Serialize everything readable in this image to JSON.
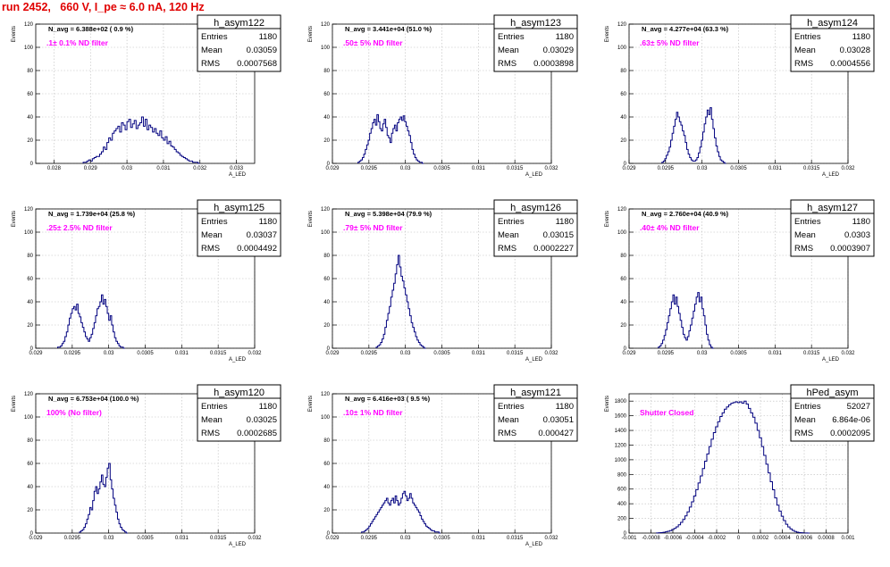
{
  "page": {
    "title": "run 2452,   660 V, I_pe ≈ 6.0 nA, 120 Hz"
  },
  "stat_labels": {
    "entries": "Entries",
    "mean": "Mean",
    "rms": "RMS"
  },
  "colors": {
    "histogram": "#00007f",
    "title": "#e00000",
    "filter_label": "#ff00ff",
    "grid": "#bbbbbb"
  },
  "chart_data": [
    {
      "type": "bar",
      "histogram_name": "h_asym122",
      "annotation_navg": "N_avg = 6.388e+02 ( 0.9 %)",
      "annotation_filter": ".1± 0.1% ND filter",
      "stats": {
        "entries": "1180",
        "mean": "0.03059",
        "rms": "0.0007568"
      },
      "xlabel": "A_LED",
      "ylabel": "Events",
      "xlim": [
        0.0275,
        0.0335
      ],
      "ylim": [
        0,
        120
      ],
      "x_ticks": [
        "0.028",
        "0.029",
        "0.03",
        "0.031",
        "0.032",
        "0.033"
      ],
      "x_tick_values": [
        0.028,
        0.029,
        0.03,
        0.031,
        0.032,
        0.033
      ],
      "y_ticks": [
        "0",
        "20",
        "40",
        "60",
        "80",
        "100",
        "120"
      ],
      "y_tick_values": [
        0,
        20,
        40,
        60,
        80,
        100,
        120
      ],
      "grid": true,
      "bins": {
        "start": 0.0288,
        "width": 5e-05,
        "values": [
          1,
          1,
          2,
          3,
          2,
          4,
          5,
          6,
          6,
          8,
          10,
          14,
          12,
          18,
          22,
          20,
          26,
          28,
          30,
          32,
          27,
          35,
          33,
          29,
          36,
          38,
          31,
          34,
          37,
          30,
          33,
          35,
          40,
          32,
          38,
          29,
          33,
          31,
          27,
          30,
          26,
          24,
          28,
          22,
          20,
          23,
          17,
          19,
          15,
          14,
          12,
          10,
          9,
          7,
          6,
          5,
          4,
          3,
          2,
          2,
          1,
          1,
          1,
          0
        ]
      }
    },
    {
      "type": "bar",
      "histogram_name": "h_asym123",
      "annotation_navg": "N_avg = 3.441e+04 (51.0 %)",
      "annotation_filter": ".50± 5% ND filter",
      "stats": {
        "entries": "1180",
        "mean": "0.03029",
        "rms": "0.0003898"
      },
      "xlabel": "A_LED",
      "ylabel": "Events",
      "xlim": [
        0.029,
        0.032
      ],
      "ylim": [
        0,
        120
      ],
      "x_ticks": [
        "0.029",
        "0.0295",
        "0.03",
        "0.0305",
        "0.031",
        "0.0315",
        "0.032"
      ],
      "x_tick_values": [
        0.029,
        0.0295,
        0.03,
        0.0305,
        0.031,
        0.0315,
        0.032
      ],
      "y_ticks": [
        "0",
        "20",
        "40",
        "60",
        "80",
        "100",
        "120"
      ],
      "y_tick_values": [
        0,
        20,
        40,
        60,
        80,
        100,
        120
      ],
      "grid": true,
      "bins": {
        "start": 0.02935,
        "width": 2e-05,
        "values": [
          1,
          2,
          3,
          5,
          8,
          12,
          16,
          20,
          26,
          30,
          35,
          38,
          33,
          42,
          36,
          30,
          28,
          34,
          38,
          31,
          24,
          22,
          18,
          26,
          30,
          33,
          28,
          35,
          38,
          40,
          37,
          41,
          36,
          32,
          28,
          24,
          18,
          12,
          8,
          5,
          3,
          2,
          1,
          1,
          0
        ]
      }
    },
    {
      "type": "bar",
      "histogram_name": "h_asym124",
      "annotation_navg": "N_avg = 4.277e+04 (63.3 %)",
      "annotation_filter": ".63± 5% ND filter",
      "stats": {
        "entries": "1180",
        "mean": "0.03028",
        "rms": "0.0004556"
      },
      "xlabel": "A_LED",
      "ylabel": "Events",
      "xlim": [
        0.029,
        0.032
      ],
      "ylim": [
        0,
        120
      ],
      "x_ticks": [
        "0.029",
        "0.0295",
        "0.03",
        "0.0305",
        "0.031",
        "0.0315",
        "0.032"
      ],
      "x_tick_values": [
        0.029,
        0.0295,
        0.03,
        0.0305,
        0.031,
        0.0315,
        0.032
      ],
      "y_ticks": [
        "0",
        "20",
        "40",
        "60",
        "80",
        "100",
        "120"
      ],
      "y_tick_values": [
        0,
        20,
        40,
        60,
        80,
        100,
        120
      ],
      "grid": true,
      "bins": {
        "start": 0.02945,
        "width": 2e-05,
        "values": [
          1,
          2,
          4,
          7,
          10,
          14,
          20,
          26,
          32,
          38,
          44,
          40,
          36,
          33,
          28,
          24,
          18,
          12,
          8,
          5,
          3,
          2,
          2,
          3,
          5,
          9,
          14,
          20,
          27,
          34,
          40,
          46,
          42,
          48,
          38,
          30,
          22,
          15,
          10,
          6,
          3,
          2,
          1,
          0
        ]
      }
    },
    {
      "type": "bar",
      "histogram_name": "h_asym125",
      "annotation_navg": "N_avg = 1.739e+04 (25.8 %)",
      "annotation_filter": ".25± 2.5% ND filter",
      "stats": {
        "entries": "1180",
        "mean": "0.03037",
        "rms": "0.0004492"
      },
      "xlabel": "A_LED",
      "ylabel": "Events",
      "xlim": [
        0.029,
        0.032
      ],
      "ylim": [
        0,
        120
      ],
      "x_ticks": [
        "0.029",
        "0.0295",
        "0.03",
        "0.0305",
        "0.031",
        "0.0315",
        "0.032"
      ],
      "x_tick_values": [
        0.029,
        0.0295,
        0.03,
        0.0305,
        0.031,
        0.0315,
        0.032
      ],
      "y_ticks": [
        "0",
        "20",
        "40",
        "60",
        "80",
        "100",
        "120"
      ],
      "y_tick_values": [
        0,
        20,
        40,
        60,
        80,
        100,
        120
      ],
      "grid": true,
      "bins": {
        "start": 0.0293,
        "width": 2e-05,
        "values": [
          1,
          1,
          2,
          4,
          6,
          10,
          14,
          20,
          26,
          30,
          34,
          36,
          33,
          38,
          30,
          27,
          22,
          18,
          14,
          10,
          8,
          6,
          9,
          12,
          17,
          22,
          28,
          34,
          36,
          40,
          46,
          38,
          42,
          36,
          30,
          24,
          28,
          20,
          14,
          9,
          6,
          4,
          2,
          1,
          1,
          0
        ]
      }
    },
    {
      "type": "bar",
      "histogram_name": "h_asym126",
      "annotation_navg": "N_avg = 5.398e+04 (79.9 %)",
      "annotation_filter": ".79± 5% ND filter",
      "stats": {
        "entries": "1180",
        "mean": "0.03015",
        "rms": "0.0002227"
      },
      "xlabel": "A_LED",
      "ylabel": "Events",
      "xlim": [
        0.029,
        0.032
      ],
      "ylim": [
        0,
        120
      ],
      "x_ticks": [
        "0.029",
        "0.0295",
        "0.03",
        "0.0305",
        "0.031",
        "0.0315",
        "0.032"
      ],
      "x_tick_values": [
        0.029,
        0.0295,
        0.03,
        0.0305,
        0.031,
        0.0315,
        0.032
      ],
      "y_ticks": [
        "0",
        "20",
        "40",
        "60",
        "80",
        "100",
        "120"
      ],
      "y_tick_values": [
        0,
        20,
        40,
        60,
        80,
        100,
        120
      ],
      "grid": true,
      "bins": {
        "start": 0.0296,
        "width": 2e-05,
        "values": [
          1,
          2,
          3,
          5,
          8,
          12,
          18,
          24,
          30,
          36,
          44,
          50,
          56,
          64,
          72,
          80,
          70,
          62,
          58,
          52,
          46,
          40,
          34,
          28,
          22,
          18,
          14,
          10,
          7,
          5,
          3,
          2,
          1,
          0
        ]
      }
    },
    {
      "type": "bar",
      "histogram_name": "h_asym127",
      "annotation_navg": "N_avg = 2.760e+04 (40.9 %)",
      "annotation_filter": ".40± 4% ND filter",
      "stats": {
        "entries": "1180",
        "mean": "0.0303",
        "rms": "0.0003907"
      },
      "xlabel": "A_LED",
      "ylabel": "Events",
      "xlim": [
        0.029,
        0.032
      ],
      "ylim": [
        0,
        120
      ],
      "x_ticks": [
        "0.029",
        "0.0295",
        "0.03",
        "0.0305",
        "0.031",
        "0.0315",
        "0.032"
      ],
      "x_tick_values": [
        0.029,
        0.0295,
        0.03,
        0.0305,
        0.031,
        0.0315,
        0.032
      ],
      "y_ticks": [
        "0",
        "20",
        "40",
        "60",
        "80",
        "100",
        "120"
      ],
      "y_tick_values": [
        0,
        20,
        40,
        60,
        80,
        100,
        120
      ],
      "grid": true,
      "bins": {
        "start": 0.0294,
        "width": 2e-05,
        "values": [
          1,
          2,
          4,
          7,
          11,
          16,
          22,
          28,
          34,
          40,
          46,
          38,
          44,
          36,
          30,
          24,
          18,
          12,
          9,
          7,
          10,
          15,
          20,
          26,
          32,
          38,
          44,
          48,
          40,
          44,
          34,
          28,
          20,
          12,
          7,
          3,
          1,
          0
        ]
      }
    },
    {
      "type": "bar",
      "histogram_name": "h_asym120",
      "annotation_navg": "N_avg = 6.753e+04 (100.0 %)",
      "annotation_filter": "100% (No filter)",
      "stats": {
        "entries": "1180",
        "mean": "0.03025",
        "rms": "0.0002685"
      },
      "xlabel": "A_LED",
      "ylabel": "Events",
      "xlim": [
        0.029,
        0.032
      ],
      "ylim": [
        0,
        120
      ],
      "x_ticks": [
        "0.029",
        "0.0295",
        "0.03",
        "0.0305",
        "0.031",
        "0.0315",
        "0.032"
      ],
      "x_tick_values": [
        0.029,
        0.0295,
        0.03,
        0.0305,
        0.031,
        0.0315,
        0.032
      ],
      "y_ticks": [
        "0",
        "20",
        "40",
        "60",
        "80",
        "100",
        "120"
      ],
      "y_tick_values": [
        0,
        20,
        40,
        60,
        80,
        100,
        120
      ],
      "grid": true,
      "bins": {
        "start": 0.0296,
        "width": 2e-05,
        "values": [
          1,
          2,
          3,
          5,
          8,
          12,
          16,
          22,
          20,
          28,
          36,
          40,
          34,
          38,
          44,
          50,
          42,
          40,
          48,
          56,
          60,
          46,
          38,
          30,
          24,
          18,
          12,
          8,
          5,
          3,
          2,
          1,
          0
        ]
      }
    },
    {
      "type": "bar",
      "histogram_name": "h_asym121",
      "annotation_navg": "N_avg = 6.416e+03 ( 9.5 %)",
      "annotation_filter": ".10± 1% ND filter",
      "stats": {
        "entries": "1180",
        "mean": "0.03051",
        "rms": "0.000427"
      },
      "xlabel": "A_LED",
      "ylabel": "Events",
      "xlim": [
        0.029,
        0.032
      ],
      "ylim": [
        0,
        120
      ],
      "x_ticks": [
        "0.029",
        "0.0295",
        "0.03",
        "0.0305",
        "0.031",
        "0.0315",
        "0.032"
      ],
      "x_tick_values": [
        0.029,
        0.0295,
        0.03,
        0.0305,
        0.031,
        0.0315,
        0.032
      ],
      "y_ticks": [
        "0",
        "20",
        "40",
        "60",
        "80",
        "100",
        "120"
      ],
      "y_tick_values": [
        0,
        20,
        40,
        60,
        80,
        100,
        120
      ],
      "grid": true,
      "bins": {
        "start": 0.0294,
        "width": 2e-05,
        "values": [
          1,
          1,
          2,
          3,
          4,
          6,
          8,
          10,
          12,
          14,
          16,
          18,
          20,
          22,
          24,
          26,
          28,
          30,
          26,
          24,
          28,
          30,
          26,
          32,
          28,
          24,
          26,
          30,
          34,
          36,
          32,
          28,
          30,
          34,
          30,
          26,
          24,
          22,
          20,
          18,
          15,
          12,
          10,
          8,
          6,
          5,
          4,
          3,
          2,
          2,
          1,
          1,
          1,
          0
        ]
      }
    },
    {
      "type": "bar",
      "histogram_name": "hPed_asym",
      "annotation_navg": "",
      "annotation_filter": "Shutter Closed",
      "stats": {
        "entries": "52027",
        "mean": "6.864e-06",
        "rms": "0.0002095"
      },
      "xlabel": "",
      "ylabel": "Events",
      "xlim": [
        -0.001,
        0.001
      ],
      "ylim": [
        0,
        1900
      ],
      "x_ticks": [
        "-0.001",
        "-0.0008",
        "-0.0006",
        "-0.0004",
        "-0.0002",
        "0",
        "0.0002",
        "0.0004",
        "0.0006",
        "0.0008",
        "0.001"
      ],
      "x_tick_values": [
        -0.001,
        -0.0008,
        -0.0006,
        -0.0004,
        -0.0002,
        0,
        0.0002,
        0.0004,
        0.0006,
        0.0008,
        0.001
      ],
      "y_ticks": [
        "0",
        "200",
        "400",
        "600",
        "800",
        "1000",
        "1200",
        "1400",
        "1600",
        "1800"
      ],
      "y_tick_values": [
        0,
        200,
        400,
        600,
        800,
        1000,
        1200,
        1400,
        1600,
        1800
      ],
      "grid": true,
      "bins": {
        "start": -0.00075,
        "width": 2e-05,
        "values": [
          2,
          4,
          6,
          10,
          16,
          24,
          34,
          48,
          64,
          86,
          112,
          146,
          186,
          234,
          290,
          354,
          426,
          506,
          592,
          684,
          780,
          880,
          980,
          1080,
          1180,
          1280,
          1370,
          1450,
          1520,
          1590,
          1640,
          1690,
          1720,
          1750,
          1770,
          1780,
          1790,
          1780,
          1790,
          1770,
          1800,
          1760,
          1700,
          1640,
          1580,
          1500,
          1400,
          1300,
          1180,
          1060,
          940,
          820,
          700,
          590,
          480,
          380,
          300,
          230,
          170,
          120,
          84,
          56,
          36,
          22,
          12,
          6,
          4,
          2,
          1,
          0
        ]
      }
    }
  ]
}
